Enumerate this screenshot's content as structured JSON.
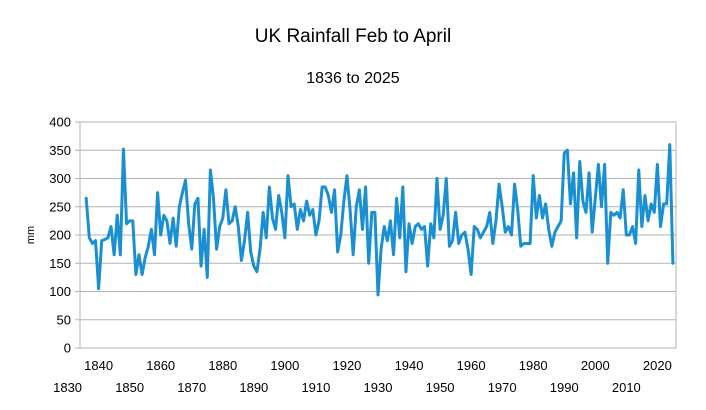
{
  "chart_data": {
    "type": "line",
    "title": "UK Rainfall Feb to April",
    "subtitle": "1836 to 2025",
    "xlabel": "",
    "ylabel": "mm",
    "xlim": [
      1834,
      2026
    ],
    "ylim": [
      0,
      400
    ],
    "y_ticks": [
      0,
      50,
      100,
      150,
      200,
      250,
      300,
      350,
      400
    ],
    "x_ticks_upper": [
      "1840",
      "1860",
      "1880",
      "1900",
      "1920",
      "1940",
      "1960",
      "1980",
      "2000",
      "2020"
    ],
    "x_ticks_lower": [
      "1830",
      "1850",
      "1870",
      "1890",
      "1910",
      "1930",
      "1950",
      "1970",
      "1990",
      "2010"
    ],
    "grid": true,
    "legend": "none",
    "series": [
      {
        "name": "UK Rainfall Feb-Apr",
        "color": "#1a8fd1",
        "x": [
          1836,
          1837,
          1838,
          1839,
          1840,
          1841,
          1842,
          1843,
          1844,
          1845,
          1846,
          1847,
          1848,
          1849,
          1850,
          1851,
          1852,
          1853,
          1854,
          1855,
          1856,
          1857,
          1858,
          1859,
          1860,
          1861,
          1862,
          1863,
          1864,
          1865,
          1866,
          1867,
          1868,
          1869,
          1870,
          1871,
          1872,
          1873,
          1874,
          1875,
          1876,
          1877,
          1878,
          1879,
          1880,
          1881,
          1882,
          1883,
          1884,
          1885,
          1886,
          1887,
          1888,
          1889,
          1890,
          1891,
          1892,
          1893,
          1894,
          1895,
          1896,
          1897,
          1898,
          1899,
          1900,
          1901,
          1902,
          1903,
          1904,
          1905,
          1906,
          1907,
          1908,
          1909,
          1910,
          1911,
          1912,
          1913,
          1914,
          1915,
          1916,
          1917,
          1918,
          1919,
          1920,
          1921,
          1922,
          1923,
          1924,
          1925,
          1926,
          1927,
          1928,
          1929,
          1930,
          1931,
          1932,
          1933,
          1934,
          1935,
          1936,
          1937,
          1938,
          1939,
          1940,
          1941,
          1942,
          1943,
          1944,
          1945,
          1946,
          1947,
          1948,
          1949,
          1950,
          1951,
          1952,
          1953,
          1954,
          1955,
          1956,
          1957,
          1958,
          1959,
          1960,
          1961,
          1962,
          1963,
          1964,
          1965,
          1966,
          1967,
          1968,
          1969,
          1970,
          1971,
          1972,
          1973,
          1974,
          1975,
          1976,
          1977,
          1978,
          1979,
          1980,
          1981,
          1982,
          1983,
          1984,
          1985,
          1986,
          1987,
          1988,
          1989,
          1990,
          1991,
          1992,
          1993,
          1994,
          1995,
          1996,
          1997,
          1998,
          1999,
          2000,
          2001,
          2002,
          2003,
          2004,
          2005,
          2006,
          2007,
          2008,
          2009,
          2010,
          2011,
          2012,
          2013,
          2014,
          2015,
          2016,
          2017,
          2018,
          2019,
          2020,
          2021,
          2022,
          2023,
          2024,
          2025
        ],
        "values": [
          265,
          195,
          185,
          190,
          105,
          190,
          192,
          195,
          215,
          165,
          235,
          165,
          352,
          220,
          225,
          225,
          130,
          165,
          130,
          160,
          180,
          210,
          165,
          275,
          200,
          235,
          225,
          185,
          230,
          180,
          250,
          275,
          297,
          220,
          175,
          255,
          265,
          145,
          210,
          125,
          315,
          265,
          175,
          215,
          230,
          280,
          220,
          225,
          250,
          215,
          155,
          190,
          240,
          170,
          145,
          135,
          175,
          240,
          195,
          285,
          230,
          210,
          270,
          240,
          195,
          305,
          250,
          255,
          210,
          245,
          225,
          260,
          235,
          245,
          200,
          225,
          285,
          285,
          270,
          240,
          280,
          170,
          200,
          260,
          305,
          245,
          165,
          250,
          280,
          210,
          285,
          150,
          240,
          240,
          94,
          175,
          215,
          190,
          225,
          165,
          265,
          195,
          285,
          135,
          220,
          185,
          215,
          220,
          210,
          215,
          145,
          220,
          195,
          300,
          210,
          235,
          300,
          180,
          190,
          240,
          185,
          200,
          205,
          175,
          130,
          215,
          210,
          195,
          205,
          215,
          240,
          185,
          225,
          290,
          250,
          205,
          215,
          200,
          290,
          245,
          180,
          185,
          185,
          185,
          305,
          230,
          270,
          230,
          255,
          210,
          180,
          205,
          215,
          225,
          345,
          350,
          255,
          310,
          195,
          330,
          260,
          240,
          310,
          205,
          265,
          325,
          250,
          325,
          150,
          240,
          235,
          240,
          230,
          280,
          200,
          200,
          215,
          185,
          315,
          215,
          270,
          225,
          255,
          240,
          325,
          215,
          255,
          255,
          360,
          150
        ]
      }
    ]
  }
}
